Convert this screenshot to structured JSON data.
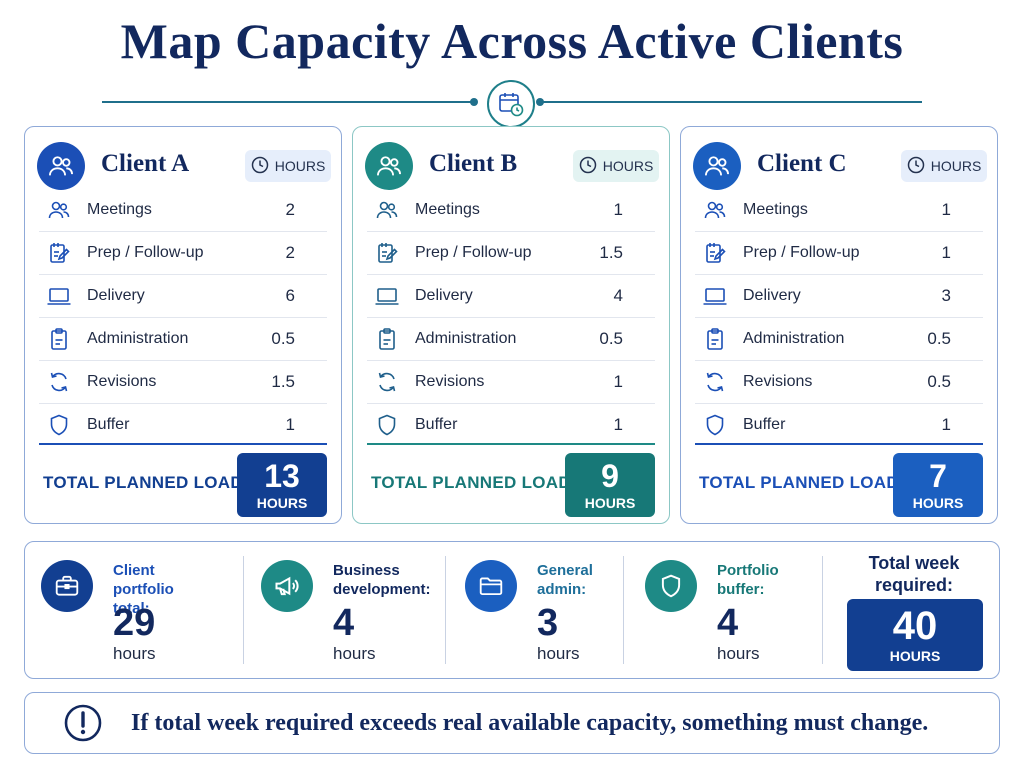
{
  "page": {
    "title": "Map Capacity Across Active Clients",
    "header_icon": "calendar-clock-icon"
  },
  "colors": {
    "navy": "#12285e",
    "blue": "#1b4fb6",
    "teal": "#1e8a86",
    "dark_teal": "#177877"
  },
  "clients": [
    {
      "name": "Client A",
      "hours_tag": "HOURS",
      "accent": "#1b4fb6",
      "rows": [
        {
          "label": "Meetings",
          "value": "2",
          "icon": "users-icon"
        },
        {
          "label": "Prep / Follow-up",
          "value": "2",
          "icon": "notepad-edit-icon"
        },
        {
          "label": "Delivery",
          "value": "6",
          "icon": "laptop-icon"
        },
        {
          "label": "Administration",
          "value": "0.5",
          "icon": "clipboard-icon"
        },
        {
          "label": "Revisions",
          "value": "1.5",
          "icon": "refresh-icon"
        },
        {
          "label": "Buffer",
          "value": "1",
          "icon": "shield-icon"
        }
      ],
      "total_label": "TOTAL PLANNED LOAD",
      "total_value": "13",
      "total_unit": "HOURS"
    },
    {
      "name": "Client B",
      "hours_tag": "HOURS",
      "accent": "#1e8a86",
      "rows": [
        {
          "label": "Meetings",
          "value": "1",
          "icon": "users-icon"
        },
        {
          "label": "Prep / Follow-up",
          "value": "1.5",
          "icon": "notepad-edit-icon"
        },
        {
          "label": "Delivery",
          "value": "4",
          "icon": "laptop-icon"
        },
        {
          "label": "Administration",
          "value": "0.5",
          "icon": "clipboard-icon"
        },
        {
          "label": "Revisions",
          "value": "1",
          "icon": "refresh-icon"
        },
        {
          "label": "Buffer",
          "value": "1",
          "icon": "shield-icon"
        }
      ],
      "total_label": "TOTAL PLANNED LOAD",
      "total_value": "9",
      "total_unit": "HOURS"
    },
    {
      "name": "Client C",
      "hours_tag": "HOURS",
      "accent": "#1b5fc0",
      "rows": [
        {
          "label": "Meetings",
          "value": "1",
          "icon": "users-icon"
        },
        {
          "label": "Prep / Follow-up",
          "value": "1",
          "icon": "notepad-edit-icon"
        },
        {
          "label": "Delivery",
          "value": "3",
          "icon": "laptop-icon"
        },
        {
          "label": "Administration",
          "value": "0.5",
          "icon": "clipboard-icon"
        },
        {
          "label": "Revisions",
          "value": "0.5",
          "icon": "refresh-icon"
        },
        {
          "label": "Buffer",
          "value": "1",
          "icon": "shield-icon"
        }
      ],
      "total_label": "TOTAL PLANNED LOAD",
      "total_value": "7",
      "total_unit": "HOURS"
    }
  ],
  "summary": {
    "items": [
      {
        "label_line1": "Client",
        "label_line2": "portfolio total:",
        "value": "29",
        "unit": "hours",
        "icon": "briefcase-icon"
      },
      {
        "label_line1": "Business",
        "label_line2": "development:",
        "value": "4",
        "unit": "hours",
        "icon": "megaphone-icon"
      },
      {
        "label_line1": "General",
        "label_line2": "admin:",
        "value": "3",
        "unit": "hours",
        "icon": "folder-icon"
      },
      {
        "label_line1": "Portfolio",
        "label_line2": "buffer:",
        "value": "4",
        "unit": "hours",
        "icon": "shield-icon"
      }
    ],
    "week_label_line1": "Total week",
    "week_label_line2": "required:",
    "week_value": "40",
    "week_unit": "HOURS"
  },
  "note": {
    "text": "If total week required exceeds real available capacity, something must change.",
    "icon": "alert-circle-icon"
  }
}
